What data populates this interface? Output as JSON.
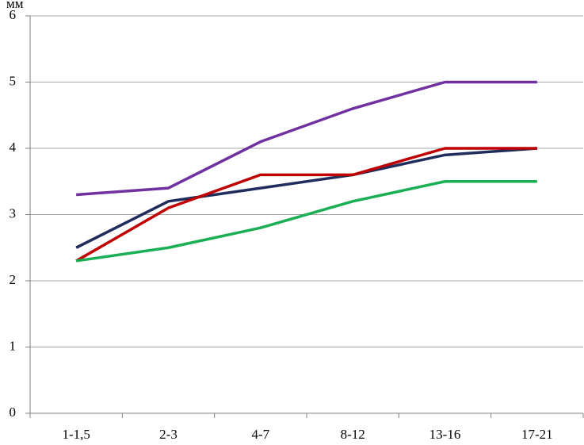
{
  "chart_data": {
    "type": "line",
    "y_label": "мм",
    "categories": [
      "1-1,5",
      "2-3",
      "4-7",
      "8-12",
      "13-16",
      "17-21"
    ],
    "series": [
      {
        "color": "#7030a0",
        "values": [
          3.3,
          3.4,
          4.1,
          4.6,
          5.0,
          5.0
        ]
      },
      {
        "color": "#1f2d5c",
        "values": [
          2.5,
          3.2,
          3.4,
          3.6,
          3.9,
          4.0
        ]
      },
      {
        "color": "#c00000",
        "values": [
          2.3,
          3.1,
          3.6,
          3.6,
          4.0,
          4.0
        ]
      },
      {
        "color": "#1aaf54",
        "values": [
          2.3,
          2.5,
          2.8,
          3.2,
          3.5,
          3.5
        ]
      }
    ],
    "ylim": [
      0,
      6
    ],
    "yticks": [
      0,
      1,
      2,
      3,
      4,
      5,
      6
    ],
    "grid": true
  }
}
